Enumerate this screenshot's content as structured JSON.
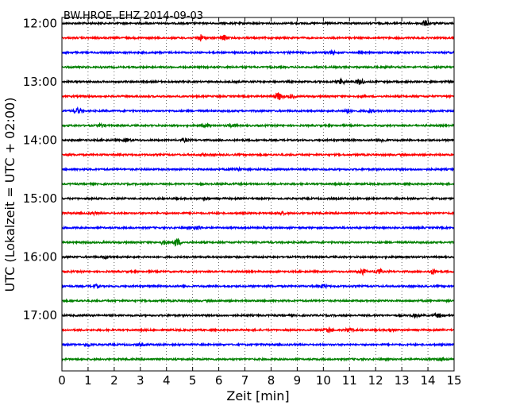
{
  "chart_data": {
    "type": "line",
    "title": "BW.HROE..EHZ 2014-09-03",
    "xlabel": "Zeit  [min]",
    "ylabel": "UTC (Lokalzeit = UTC + 02:00)",
    "xlim": [
      0,
      15
    ],
    "x_ticks": [
      "0",
      "1",
      "2",
      "3",
      "4",
      "5",
      "6",
      "7",
      "8",
      "9",
      "10",
      "11",
      "12",
      "13",
      "14",
      "15"
    ],
    "y_ticks": [
      "12:00",
      "13:00",
      "14:00",
      "15:00",
      "16:00",
      "17:00"
    ],
    "y_tick_times_hours": [
      12,
      13,
      14,
      15,
      16,
      17
    ],
    "ylim_hours": [
      11.9,
      17.95
    ],
    "grid": "vertical dotted",
    "colors": [
      "#000000",
      "#ff0000",
      "#0000ff",
      "#008000"
    ],
    "series": [
      {
        "start": "12:00",
        "color": "#000000",
        "bursts": [
          [
            13.9,
            0.9
          ]
        ]
      },
      {
        "start": "12:15",
        "color": "#ff0000",
        "bursts": [
          [
            5.3,
            1.1
          ],
          [
            6.2,
            1.0
          ]
        ]
      },
      {
        "start": "12:30",
        "color": "#0000ff",
        "bursts": [
          [
            10.3,
            0.5
          ]
        ]
      },
      {
        "start": "12:45",
        "color": "#008000",
        "bursts": []
      },
      {
        "start": "13:00",
        "color": "#000000",
        "bursts": [
          [
            10.7,
            0.9
          ],
          [
            11.4,
            1.1
          ]
        ]
      },
      {
        "start": "13:15",
        "color": "#ff0000",
        "bursts": [
          [
            8.3,
            1.5
          ],
          [
            8.8,
            0.6
          ]
        ]
      },
      {
        "start": "13:30",
        "color": "#0000ff",
        "bursts": [
          [
            0.6,
            0.9
          ],
          [
            10.9,
            0.7
          ],
          [
            11.8,
            0.6
          ]
        ]
      },
      {
        "start": "13:45",
        "color": "#008000",
        "bursts": [
          [
            1.5,
            0.6
          ],
          [
            5.5,
            0.6
          ],
          [
            6.5,
            0.6
          ]
        ]
      },
      {
        "start": "14:00",
        "color": "#000000",
        "bursts": [
          [
            2.5,
            0.5
          ],
          [
            4.7,
            0.5
          ],
          [
            12.3,
            0.4
          ]
        ]
      },
      {
        "start": "14:15",
        "color": "#ff0000",
        "bursts": [
          [
            5.4,
            0.4
          ]
        ]
      },
      {
        "start": "14:30",
        "color": "#0000ff",
        "bursts": [
          [
            6.7,
            0.5
          ]
        ]
      },
      {
        "start": "14:45",
        "color": "#008000",
        "bursts": []
      },
      {
        "start": "15:00",
        "color": "#000000",
        "bursts": [
          [
            5.5,
            0.3
          ]
        ]
      },
      {
        "start": "15:15",
        "color": "#ff0000",
        "bursts": [
          [
            1.2,
            0.5
          ],
          [
            8.4,
            0.5
          ]
        ]
      },
      {
        "start": "15:30",
        "color": "#0000ff",
        "bursts": [
          [
            5.2,
            0.7
          ]
        ]
      },
      {
        "start": "15:45",
        "color": "#008000",
        "bursts": [
          [
            3.9,
            0.7
          ],
          [
            4.4,
            1.4
          ]
        ]
      },
      {
        "start": "16:00",
        "color": "#000000",
        "bursts": [
          [
            1.7,
            0.4
          ]
        ]
      },
      {
        "start": "16:15",
        "color": "#ff0000",
        "bursts": [
          [
            11.5,
            0.9
          ],
          [
            12.1,
            1.0
          ],
          [
            14.2,
            0.9
          ]
        ]
      },
      {
        "start": "16:30",
        "color": "#0000ff",
        "bursts": [
          [
            1.3,
            0.5
          ],
          [
            10.0,
            0.6
          ]
        ]
      },
      {
        "start": "16:45",
        "color": "#008000",
        "bursts": []
      },
      {
        "start": "17:00",
        "color": "#000000",
        "bursts": [
          [
            13.5,
            0.5
          ],
          [
            14.4,
            0.7
          ]
        ]
      },
      {
        "start": "17:15",
        "color": "#ff0000",
        "bursts": [
          [
            10.2,
            0.8
          ],
          [
            11.0,
            0.7
          ],
          [
            12.6,
            0.6
          ]
        ]
      },
      {
        "start": "17:30",
        "color": "#0000ff",
        "bursts": [
          [
            1.0,
            0.6
          ],
          [
            3.0,
            0.3
          ]
        ]
      },
      {
        "start": "17:45",
        "color": "#008000",
        "bursts": [
          [
            14.5,
            0.5
          ]
        ]
      }
    ]
  }
}
